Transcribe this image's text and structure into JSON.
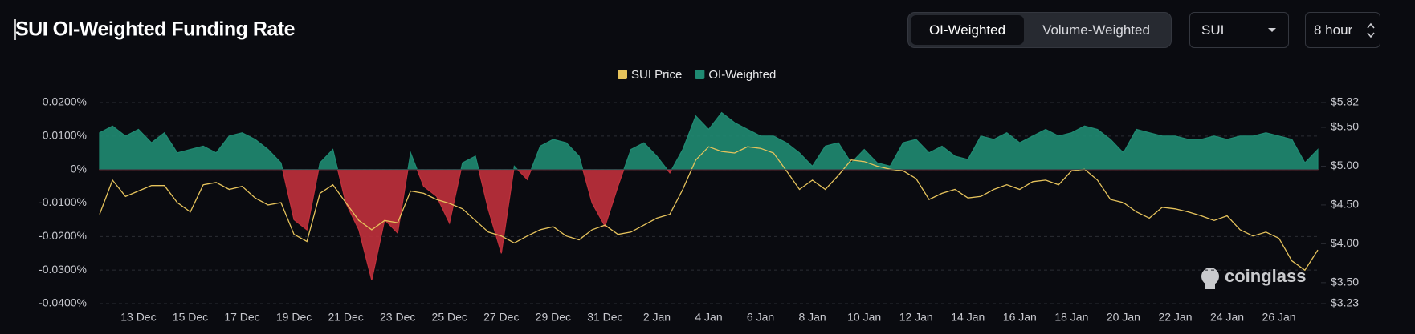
{
  "chart_data": {
    "type": "area_line",
    "title": "SUI OI-Weighted Funding Rate",
    "categories": [
      null,
      null,
      null,
      "13 Dec",
      null,
      null,
      null,
      "15 Dec",
      null,
      null,
      null,
      "17 Dec",
      null,
      null,
      null,
      "19 Dec",
      null,
      null,
      null,
      "21 Dec",
      null,
      null,
      null,
      "23 Dec",
      null,
      null,
      null,
      "25 Dec",
      null,
      null,
      null,
      "27 Dec",
      null,
      null,
      null,
      "29 Dec",
      null,
      null,
      null,
      "31 Dec",
      null,
      null,
      null,
      "2 Jan",
      null,
      null,
      null,
      "4 Jan",
      null,
      null,
      null,
      "6 Jan",
      null,
      null,
      null,
      "8 Jan",
      null,
      null,
      null,
      "10 Jan",
      null,
      null,
      null,
      "12 Jan",
      null,
      null,
      null,
      "14 Jan",
      null,
      null,
      null,
      "16 Jan",
      null,
      null,
      null,
      "18 Jan",
      null,
      null,
      null,
      "20 Jan",
      null,
      null,
      null,
      "22 Jan",
      null,
      null,
      null,
      "24 Jan",
      null,
      null,
      null,
      "26 Jan",
      null,
      null,
      null
    ],
    "series": [
      {
        "name": "SUI Price",
        "color": "#e6c35c",
        "axis": "y2",
        "values": [
          4.38,
          4.82,
          4.61,
          4.68,
          4.75,
          4.75,
          4.53,
          4.41,
          4.76,
          4.79,
          4.7,
          4.74,
          4.59,
          4.5,
          4.53,
          4.12,
          4.03,
          4.65,
          4.76,
          4.53,
          4.3,
          4.18,
          4.3,
          4.27,
          4.68,
          4.65,
          4.57,
          4.52,
          4.45,
          4.3,
          4.15,
          4.1,
          4.01,
          4.1,
          4.18,
          4.22,
          4.1,
          4.05,
          4.18,
          4.24,
          4.12,
          4.15,
          4.24,
          4.33,
          4.38,
          4.7,
          5.08,
          5.25,
          5.19,
          5.17,
          5.25,
          5.23,
          5.17,
          4.94,
          4.7,
          4.82,
          4.7,
          4.88,
          5.08,
          5.06,
          5.0,
          4.96,
          4.94,
          4.84,
          4.57,
          4.65,
          4.7,
          4.59,
          4.61,
          4.7,
          4.76,
          4.7,
          4.8,
          4.82,
          4.76,
          4.94,
          4.96,
          4.82,
          4.57,
          4.53,
          4.41,
          4.33,
          4.47,
          4.45,
          4.41,
          4.36,
          4.3,
          4.36,
          4.18,
          4.1,
          4.15,
          4.07,
          3.78,
          3.66,
          3.92
        ]
      },
      {
        "name": "OI-Weighted",
        "color": "#1f8a72",
        "negative_color": "#c0303b",
        "values": [
          0.011,
          0.013,
          0.01,
          0.012,
          0.008,
          0.011,
          0.005,
          0.006,
          0.007,
          0.005,
          0.01,
          0.011,
          0.009,
          0.006,
          0.002,
          -0.015,
          -0.018,
          0.002,
          0.006,
          -0.01,
          -0.018,
          -0.033,
          -0.015,
          -0.019,
          0.005,
          -0.005,
          -0.008,
          -0.016,
          0.002,
          0.004,
          -0.012,
          -0.025,
          0.001,
          -0.003,
          0.007,
          0.009,
          0.008,
          0.004,
          -0.01,
          -0.017,
          -0.005,
          0.006,
          0.008,
          0.004,
          -0.001,
          0.006,
          0.016,
          0.012,
          0.017,
          0.014,
          0.012,
          0.01,
          0.01,
          0.008,
          0.005,
          0.001,
          0.007,
          0.008,
          0.002,
          0.006,
          0.002,
          0.001,
          0.008,
          0.009,
          0.005,
          0.007,
          0.004,
          0.003,
          0.01,
          0.009,
          0.011,
          0.008,
          0.01,
          0.012,
          0.01,
          0.011,
          0.013,
          0.012,
          0.009,
          0.005,
          0.012,
          0.011,
          0.01,
          0.01,
          0.009,
          0.009,
          0.01,
          0.009,
          0.01,
          0.01,
          0.011,
          0.01,
          0.009,
          0.002,
          0.006
        ]
      }
    ],
    "ylim": [
      -0.04,
      0.02
    ],
    "yticks": [
      {
        "value": 0.02,
        "label": "0.0200%"
      },
      {
        "value": 0.01,
        "label": "0.0100%"
      },
      {
        "value": 0,
        "label": "0%"
      },
      {
        "value": -0.01,
        "label": "-0.0100%"
      },
      {
        "value": -0.02,
        "label": "-0.0200%"
      },
      {
        "value": -0.03,
        "label": "-0.0300%"
      },
      {
        "value": -0.04,
        "label": "-0.0400%"
      }
    ],
    "y2lim": [
      3.23,
      5.82
    ],
    "y2ticks": [
      {
        "value": 5.82,
        "label": "$5.82"
      },
      {
        "value": 5.5,
        "label": "$5.50"
      },
      {
        "value": 5.0,
        "label": "$5.00"
      },
      {
        "value": 4.5,
        "label": "$4.50"
      },
      {
        "value": 4.0,
        "label": "$4.00"
      },
      {
        "value": 3.5,
        "label": "$3.50"
      },
      {
        "value": 3.23,
        "label": "$3.23"
      }
    ],
    "grid": true
  },
  "controls": {
    "tabs": [
      "OI-Weighted",
      "Volume-Weighted"
    ],
    "symbol": "SUI",
    "interval": "8 hour"
  },
  "watermark": "coinglass"
}
